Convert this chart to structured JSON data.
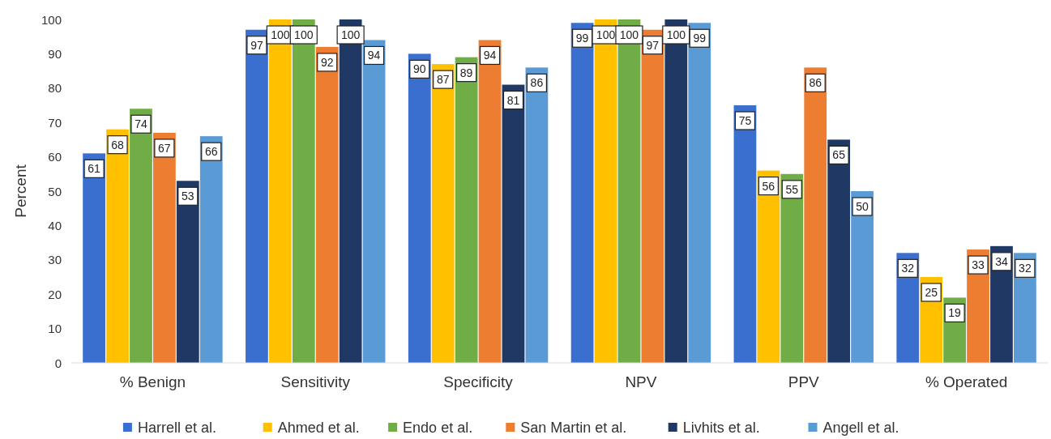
{
  "chart_data": {
    "type": "bar",
    "ylabel": "Percent",
    "categories": [
      "% Benign",
      "Sensitivity",
      "Specificity",
      "NPV",
      "PPV",
      "% Operated"
    ],
    "series": [
      {
        "name": "Harrell et al.",
        "color": "#3b6fcf",
        "values": [
          61,
          97,
          90,
          99,
          75,
          32
        ]
      },
      {
        "name": "Ahmed et al.",
        "color": "#ffc000",
        "values": [
          68,
          100,
          87,
          100,
          56,
          25
        ]
      },
      {
        "name": "Endo et al.",
        "color": "#70ad47",
        "values": [
          74,
          100,
          89,
          100,
          55,
          19
        ]
      },
      {
        "name": "San Martin et al.",
        "color": "#ed7d31",
        "values": [
          67,
          92,
          94,
          97,
          86,
          33
        ]
      },
      {
        "name": "Livhits et al.",
        "color": "#203864",
        "values": [
          53,
          100,
          81,
          100,
          65,
          34
        ]
      },
      {
        "name": "Angell et al.",
        "color": "#5b9bd5",
        "values": [
          66,
          94,
          86,
          99,
          50,
          32
        ]
      }
    ],
    "ylim": [
      0,
      100
    ],
    "yticks": [
      0,
      10,
      20,
      30,
      40,
      50,
      60,
      70,
      80,
      90,
      100
    ],
    "grid": false,
    "legend": "bottom",
    "data_labels": true
  }
}
